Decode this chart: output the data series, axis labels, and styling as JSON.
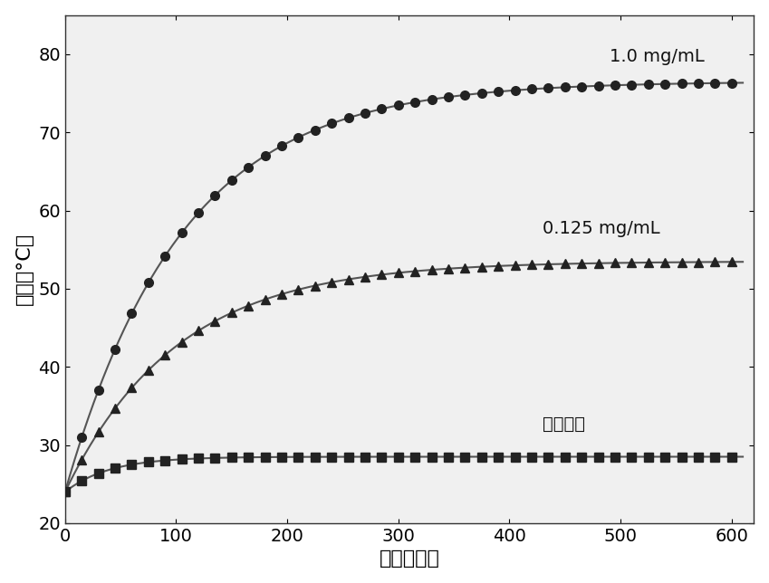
{
  "title": "",
  "xlabel": "时间（秒）",
  "ylabel": "温度（°C）",
  "xlim": [
    0,
    620
  ],
  "ylim": [
    20,
    85
  ],
  "xticks": [
    0,
    100,
    200,
    300,
    400,
    500,
    600
  ],
  "yticks": [
    20,
    30,
    40,
    50,
    60,
    70,
    80
  ],
  "background_color": "#f5f5f5",
  "series": [
    {
      "label": "1.0 mg/mL",
      "color": "#222222",
      "marker": "o",
      "markersize": 7,
      "t0": 24.0,
      "t_max": 76.5,
      "k": 0.0095,
      "annotation": "1.0 mg/mL",
      "ann_x": 490,
      "ann_y": 79
    },
    {
      "label": "0.125 mg/mL",
      "color": "#222222",
      "marker": "^",
      "markersize": 7,
      "t0": 24.0,
      "t_max": 53.5,
      "k": 0.01,
      "annotation": "0.125 mg/mL",
      "ann_x": 430,
      "ann_y": 57
    },
    {
      "label": "生理盐水",
      "color": "#222222",
      "marker": "s",
      "markersize": 7,
      "t0": 24.0,
      "t_max": 28.5,
      "k": 0.025,
      "annotation": "生理盐水",
      "ann_x": 430,
      "ann_y": 32
    }
  ],
  "xlabel_fontsize": 16,
  "ylabel_fontsize": 16,
  "tick_fontsize": 14,
  "ann_fontsize": 14,
  "linewidth": 1.5,
  "line_color": "#555555",
  "marker_interval": 15
}
